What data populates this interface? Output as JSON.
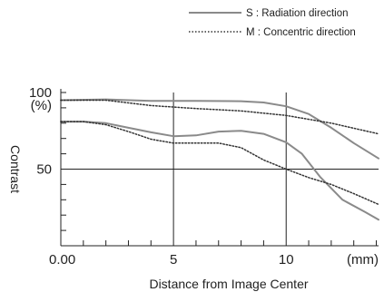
{
  "chart_data": {
    "type": "line",
    "xlabel": "Distance from Image Center",
    "ylabel": "Contrast",
    "xlim": [
      0,
      14.1
    ],
    "ylim": [
      0,
      100
    ],
    "x_tick_labels": [
      {
        "value": 0,
        "label": "0.00"
      },
      {
        "value": 5,
        "label": "5"
      },
      {
        "value": 10,
        "label": "10"
      },
      {
        "value": 14.1,
        "label": "(mm)"
      }
    ],
    "y_tick_labels": [
      {
        "value": 100,
        "label": "100"
      },
      {
        "value": 50,
        "label": "50"
      }
    ],
    "y_unit_label": "(%)",
    "grid": {
      "vertical_lines_at": [
        5,
        10
      ],
      "horizontal_lines_at": [
        50
      ],
      "minor_ticks_every": 10
    },
    "legend": {
      "position": "top-right",
      "entries": [
        {
          "style": "solid",
          "label": "S : Radiation direction"
        },
        {
          "style": "dotted",
          "label": "M : Concentric direction"
        }
      ]
    },
    "series": [
      {
        "style": "solid",
        "color": "#8a8a8a",
        "x": [
          0,
          2,
          4,
          6,
          8,
          9,
          10,
          11,
          12,
          13,
          14.1
        ],
        "y": [
          95,
          95.5,
          94.5,
          94.5,
          94.3,
          93.5,
          91,
          86,
          77,
          67,
          57
        ]
      },
      {
        "style": "solid",
        "color": "#8a8a8a",
        "x": [
          0,
          1,
          2,
          3,
          4,
          5,
          6,
          7,
          8,
          9,
          10,
          10.7,
          11.5,
          12.5,
          13.5,
          14.1
        ],
        "y": [
          81,
          81,
          80,
          77,
          74,
          71.5,
          72,
          74.5,
          75,
          73,
          67.5,
          60,
          45,
          30,
          22,
          17
        ]
      },
      {
        "style": "dotted",
        "color": "#333333",
        "x": [
          0,
          2,
          4,
          6,
          8,
          10,
          12,
          14.1
        ],
        "y": [
          95,
          95,
          91.5,
          89.5,
          88,
          85,
          80,
          73
        ]
      },
      {
        "style": "dotted",
        "color": "#333333",
        "x": [
          0,
          1,
          2,
          3,
          4,
          5,
          6,
          7,
          8,
          9,
          10,
          11,
          12,
          13,
          14.1
        ],
        "y": [
          81,
          81,
          79,
          74.5,
          69.5,
          67,
          67,
          67,
          64,
          56,
          50,
          44.5,
          40,
          34,
          27
        ]
      }
    ]
  }
}
